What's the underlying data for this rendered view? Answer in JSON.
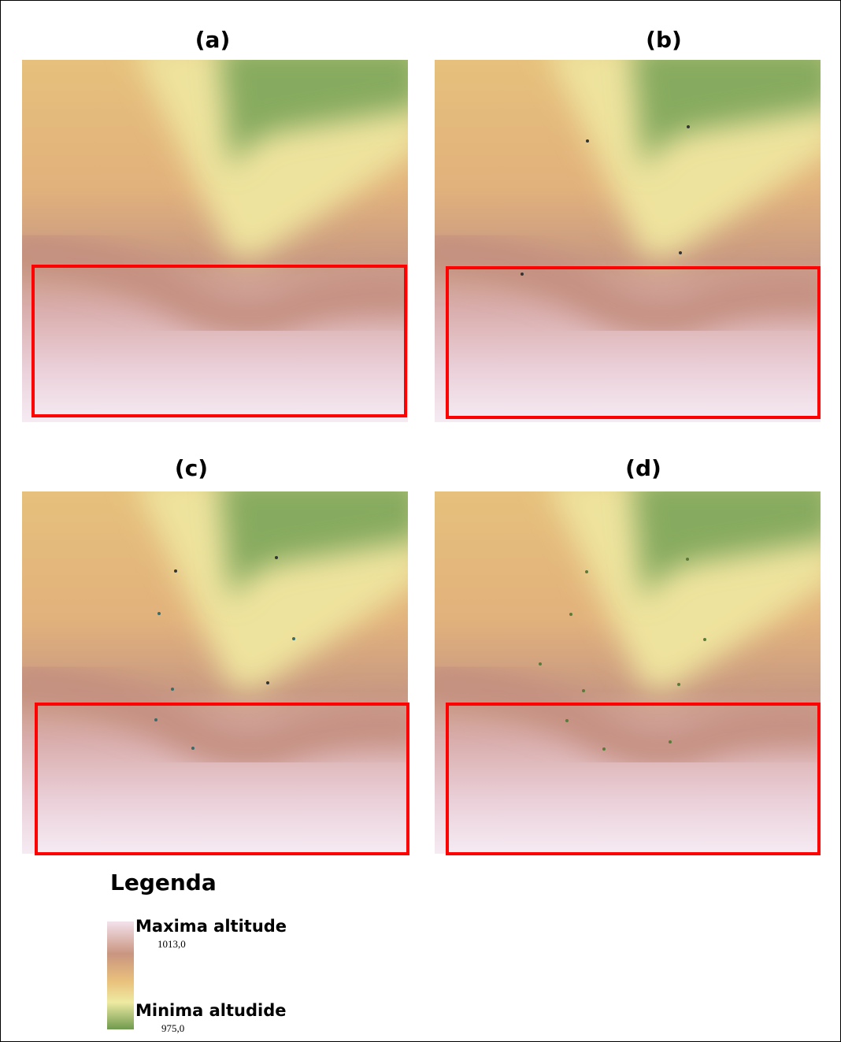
{
  "panels": [
    {
      "label": "(a)"
    },
    {
      "label": "(b)"
    },
    {
      "label": "(c)"
    },
    {
      "label": "(d)"
    }
  ],
  "legend": {
    "title": "Legenda",
    "max_label": "Maxima altitude",
    "max_value": "1013,0",
    "min_label": "Minima altudide",
    "min_value": "975,0"
  }
}
